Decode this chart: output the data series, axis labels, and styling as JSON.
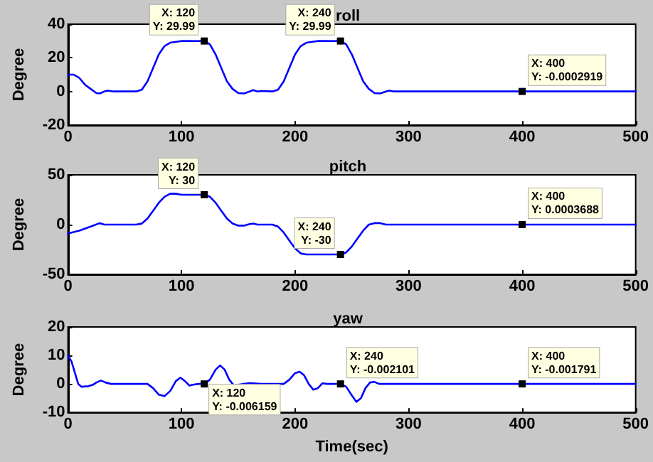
{
  "chart_data": [
    {
      "type": "line",
      "title": "roll",
      "ylabel": "Degree",
      "xlim": [
        0,
        500
      ],
      "xticks": [
        0,
        100,
        200,
        300,
        400,
        500
      ],
      "ylim": [
        -20,
        40
      ],
      "yticks": [
        -20,
        0,
        20,
        40
      ],
      "series": [
        {
          "color": "#0000ff",
          "x": [
            0,
            5,
            10,
            15,
            20,
            25,
            28,
            32,
            35,
            40,
            60,
            65,
            70,
            75,
            80,
            85,
            90,
            100,
            120,
            125,
            130,
            135,
            140,
            145,
            150,
            155,
            160,
            163,
            167,
            170,
            180,
            185,
            190,
            195,
            200,
            205,
            210,
            220,
            240,
            245,
            250,
            255,
            260,
            265,
            270,
            275,
            280,
            283,
            287,
            500
          ],
          "values": [
            10,
            10,
            8,
            4,
            1.5,
            -1,
            -1.2,
            0,
            0.5,
            0,
            0,
            1,
            6,
            14,
            22,
            27,
            29,
            30,
            29.99,
            28,
            22,
            14,
            6,
            1.5,
            -1,
            -1.2,
            0,
            0.8,
            0,
            0.3,
            0,
            1,
            6,
            14,
            22,
            27,
            29,
            30,
            29.99,
            28,
            22,
            14,
            6,
            1.5,
            -1,
            -1.2,
            0,
            0.5,
            0,
            0
          ]
        }
      ],
      "annotations": [
        {
          "text": "X: 120\nY: 29.99",
          "x": 120,
          "y": 29.99
        },
        {
          "text": "X: 240\nY: 29.99",
          "x": 240,
          "y": 29.99
        },
        {
          "text": "X: 400\nY: -0.0002919",
          "x": 400,
          "y": -0.0002919
        }
      ]
    },
    {
      "type": "line",
      "title": "pitch",
      "ylabel": "Degree",
      "xlim": [
        0,
        500
      ],
      "xticks": [
        0,
        100,
        200,
        300,
        400,
        500
      ],
      "ylim": [
        -50,
        50
      ],
      "yticks": [
        -50,
        0,
        50
      ],
      "series": [
        {
          "color": "#0000ff",
          "x": [
            0,
            10,
            20,
            28,
            32,
            60,
            65,
            70,
            75,
            80,
            85,
            90,
            95,
            100,
            120,
            125,
            130,
            135,
            140,
            145,
            150,
            155,
            160,
            163,
            167,
            180,
            185,
            190,
            195,
            200,
            205,
            210,
            240,
            245,
            250,
            255,
            260,
            265,
            270,
            275,
            280,
            285,
            500
          ],
          "values": [
            -9,
            -6,
            -2,
            1.5,
            0,
            0,
            1,
            6,
            14,
            22,
            28,
            31,
            31,
            30,
            30,
            28,
            22,
            14,
            6,
            1,
            -1,
            -1,
            0.5,
            1,
            0,
            0,
            -2,
            -8,
            -16,
            -24,
            -29,
            -30,
            -30,
            -28,
            -22,
            -14,
            -6,
            0,
            1.5,
            1.5,
            0,
            0,
            0
          ]
        }
      ],
      "annotations": [
        {
          "text": "X: 120\nY: 30",
          "x": 120,
          "y": 30
        },
        {
          "text": "X: 240\nY: -30",
          "x": 240,
          "y": -30
        },
        {
          "text": "X: 400\nY: 0.0003688",
          "x": 400,
          "y": 0.0003688
        }
      ]
    },
    {
      "type": "line",
      "title": "yaw",
      "ylabel": "Degree",
      "xlabel": "Time(sec)",
      "xlim": [
        0,
        500
      ],
      "xticks": [
        0,
        100,
        200,
        300,
        400,
        500
      ],
      "ylim": [
        -10,
        20
      ],
      "yticks": [
        -10,
        0,
        10,
        20
      ],
      "series": [
        {
          "color": "#0000ff",
          "x": [
            0,
            3,
            6,
            9,
            12,
            18,
            22,
            25,
            29,
            33,
            38,
            70,
            75,
            80,
            85,
            90,
            95,
            99,
            103,
            107,
            110,
            115,
            120,
            125,
            130,
            134,
            138,
            142,
            146,
            150,
            155,
            160,
            170,
            190,
            195,
            200,
            204,
            208,
            212,
            216,
            220,
            224,
            228,
            240,
            245,
            250,
            254,
            258,
            262,
            266,
            270,
            274,
            280,
            500
          ],
          "values": [
            10,
            8,
            4,
            0,
            -1,
            -0.8,
            -0.3,
            0.5,
            1.2,
            0.5,
            0,
            0,
            -1.5,
            -3.8,
            -4.3,
            -2.5,
            1,
            2.2,
            1,
            -0.6,
            -0.3,
            0,
            0,
            1.5,
            5,
            6.5,
            5,
            1.5,
            -0.5,
            -0.3,
            0,
            0.3,
            0,
            0,
            1.5,
            3.8,
            4.3,
            3,
            0,
            -2,
            -1.5,
            0.2,
            0,
            0,
            -1,
            -4,
            -6.3,
            -5,
            -1.5,
            0.5,
            0.7,
            0,
            0,
            0
          ]
        }
      ],
      "annotations": [
        {
          "text": "X: 120\nY: -0.006159",
          "x": 120,
          "y": -0.006159
        },
        {
          "text": "X: 240\nY: -0.002101",
          "x": 240,
          "y": -0.002101
        },
        {
          "text": "X: 400\nY: -0.001791",
          "x": 400,
          "y": -0.001791
        }
      ]
    }
  ]
}
